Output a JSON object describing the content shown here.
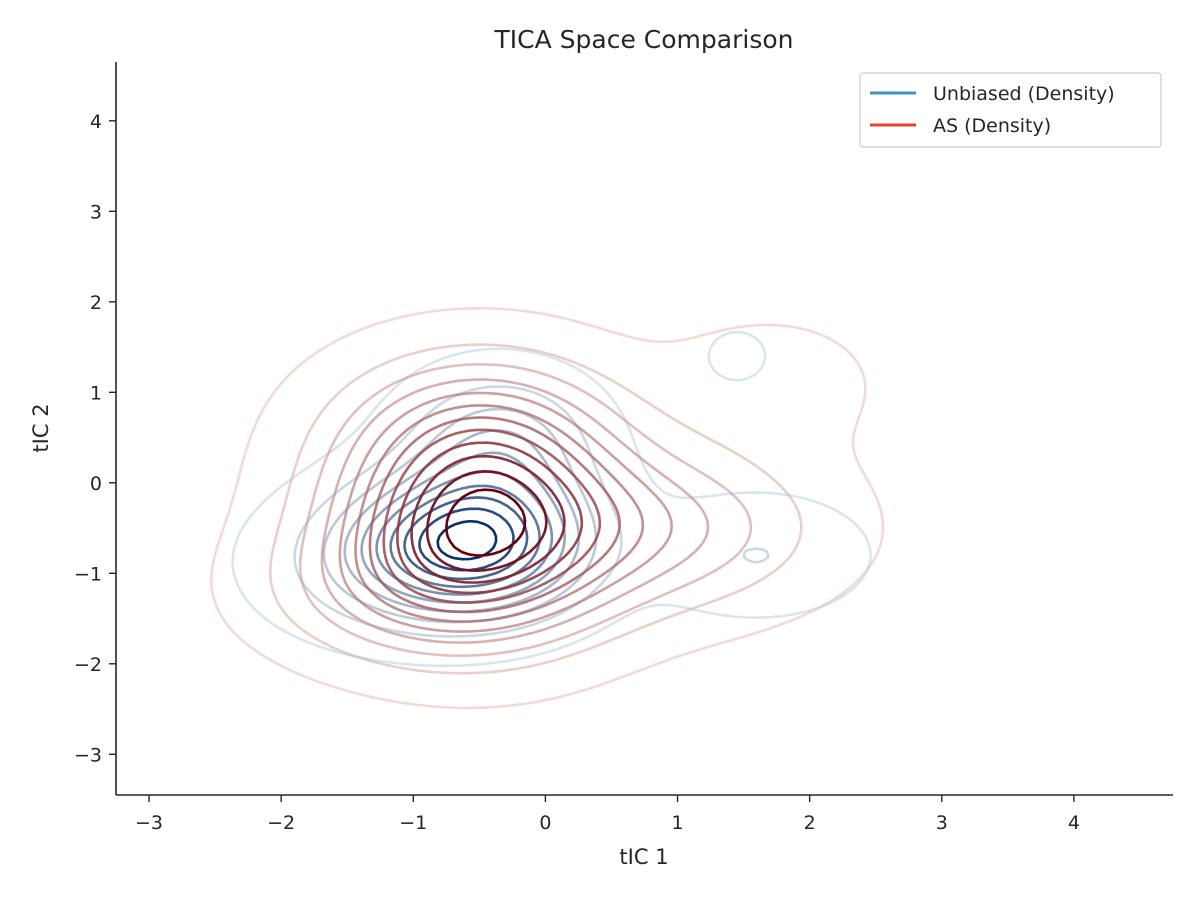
{
  "chart_data": {
    "type": "contour",
    "title": "TICA Space Comparison",
    "xlabel": "tIC 1",
    "ylabel": "tIC 2",
    "xlim": [
      -3.25,
      4.75
    ],
    "ylim": [
      -3.45,
      4.65
    ],
    "xticks": [
      -3,
      -2,
      -1,
      0,
      1,
      2,
      3,
      4
    ],
    "yticks": [
      -3,
      -2,
      -1,
      0,
      1,
      2,
      3,
      4
    ],
    "grid": false,
    "legend_position": "top-right",
    "series": [
      {
        "name": "Unbiased (Density)",
        "color": "#4292c6",
        "colormap": "Blues",
        "components": [
          {
            "mean": [
              -0.55,
              -0.65
            ],
            "sd": [
              0.55,
              0.5
            ],
            "weight": 1.0
          },
          {
            "mean": [
              -0.35,
              0.4
            ],
            "sd": [
              0.45,
              0.5
            ],
            "weight": 0.35
          },
          {
            "mean": [
              1.6,
              -0.8
            ],
            "sd": [
              0.5,
              0.4
            ],
            "weight": 0.15
          },
          {
            "mean": [
              1.45,
              1.4
            ],
            "sd": [
              0.2,
              0.25
            ],
            "weight": 0.06
          },
          {
            "mean": [
              -1.2,
              -0.9
            ],
            "sd": [
              0.6,
              0.5
            ],
            "weight": 0.2
          }
        ],
        "levels": 10
      },
      {
        "name": "AS (Density)",
        "color": "#e8412c",
        "colormap": "Reds",
        "components": [
          {
            "mean": [
              -0.5,
              -0.5
            ],
            "sd": [
              0.7,
              0.75
            ],
            "weight": 1.0
          },
          {
            "mean": [
              -0.5,
              0.6
            ],
            "sd": [
              0.7,
              0.6
            ],
            "weight": 0.35
          },
          {
            "mean": [
              0.9,
              -0.5
            ],
            "sd": [
              0.8,
              0.6
            ],
            "weight": 0.3
          },
          {
            "mean": [
              1.7,
              1.1
            ],
            "sd": [
              0.55,
              0.5
            ],
            "weight": 0.08
          },
          {
            "mean": [
              -1.1,
              -1.2
            ],
            "sd": [
              0.7,
              0.5
            ],
            "weight": 0.2
          }
        ],
        "levels": 12
      }
    ]
  }
}
